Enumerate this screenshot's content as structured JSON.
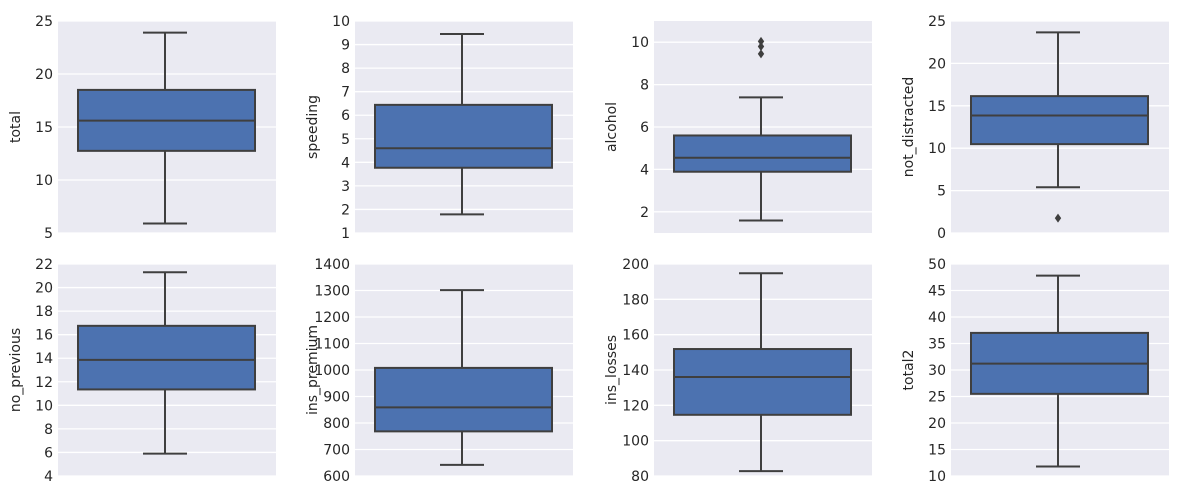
{
  "chart_data": [
    {
      "type": "box",
      "ylabel": "total",
      "ylim": [
        5,
        25
      ],
      "yticks": [
        "5",
        "10",
        "15",
        "20",
        "25"
      ],
      "box": {
        "whisker_low": 5.9,
        "q1": 12.75,
        "median": 15.6,
        "q3": 18.5,
        "whisker_high": 23.9
      },
      "outliers": []
    },
    {
      "type": "box",
      "ylabel": "speeding",
      "ylim": [
        1,
        10
      ],
      "yticks": [
        "1",
        "2",
        "3",
        "4",
        "5",
        "6",
        "7",
        "8",
        "9",
        "10"
      ],
      "box": {
        "whisker_low": 1.79,
        "q1": 3.77,
        "median": 4.6,
        "q3": 6.44,
        "whisker_high": 9.45
      },
      "outliers": []
    },
    {
      "type": "box",
      "ylabel": "alcohol",
      "ylim": [
        1,
        11
      ],
      "yticks": [
        "2",
        "4",
        "6",
        "8",
        "10"
      ],
      "box": {
        "whisker_low": 1.59,
        "q1": 3.89,
        "median": 4.55,
        "q3": 5.6,
        "whisker_high": 7.4
      },
      "outliers": [
        9.45,
        9.8,
        10.04
      ]
    },
    {
      "type": "box",
      "ylabel": "not_distracted",
      "ylim": [
        0,
        25
      ],
      "yticks": [
        "0",
        "5",
        "10",
        "15",
        "20",
        "25"
      ],
      "box": {
        "whisker_low": 5.4,
        "q1": 10.48,
        "median": 13.86,
        "q3": 16.14,
        "whisker_high": 23.66
      },
      "outliers": [
        1.76
      ]
    },
    {
      "type": "box",
      "ylabel": "no_previous",
      "ylim": [
        4,
        22
      ],
      "yticks": [
        "4",
        "6",
        "8",
        "10",
        "12",
        "14",
        "16",
        "18",
        "20",
        "22"
      ],
      "box": {
        "whisker_low": 5.9,
        "q1": 11.35,
        "median": 13.86,
        "q3": 16.75,
        "whisker_high": 21.3
      },
      "outliers": []
    },
    {
      "type": "box",
      "ylabel": "ins_premium",
      "ylim": [
        600,
        1400
      ],
      "yticks": [
        "600",
        "700",
        "800",
        "900",
        "1000",
        "1100",
        "1200",
        "1300",
        "1400"
      ],
      "box": {
        "whisker_low": 641.96,
        "q1": 768.43,
        "median": 858.97,
        "q3": 1007.94,
        "whisker_high": 1301.52
      },
      "outliers": []
    },
    {
      "type": "box",
      "ylabel": "ins_losses",
      "ylim": [
        80,
        200
      ],
      "yticks": [
        "80",
        "100",
        "120",
        "140",
        "160",
        "180",
        "200"
      ],
      "box": {
        "whisker_low": 82.75,
        "q1": 114.64,
        "median": 136.05,
        "q3": 151.87,
        "whisker_high": 194.78
      },
      "outliers": []
    },
    {
      "type": "box",
      "ylabel": "total2",
      "ylim": [
        10,
        50
      ],
      "yticks": [
        "10",
        "15",
        "20",
        "25",
        "30",
        "35",
        "40",
        "45",
        "50"
      ],
      "box": {
        "whisker_low": 11.8,
        "q1": 25.5,
        "median": 31.2,
        "q3": 37.0,
        "whisker_high": 47.8
      },
      "outliers": []
    }
  ],
  "colors": {
    "plot_background": "#EAEAF2",
    "grid": "#FFFFFF",
    "box_fill": "#4C72B0",
    "lines": "#3F3F3F",
    "text": "#262626"
  }
}
